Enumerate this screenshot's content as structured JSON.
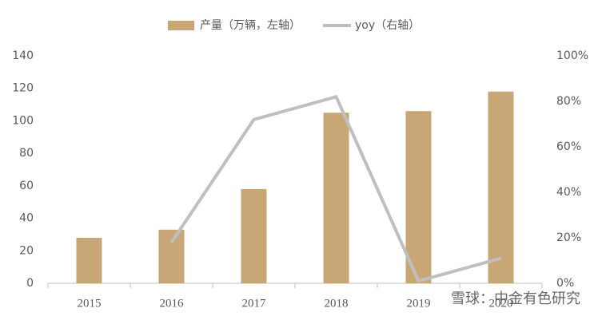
{
  "chart_data": {
    "type": "bar",
    "categories": [
      "2015",
      "2016",
      "2017",
      "2018",
      "2019",
      "2020"
    ],
    "series": [
      {
        "name": "产量（万辆，左轴）",
        "type": "bar",
        "color": "#c9a675",
        "values": [
          28,
          33,
          58,
          105,
          106,
          118
        ]
      },
      {
        "name": "yoy（右轴）",
        "type": "line",
        "axis": "y2",
        "color": "#bfbfbf",
        "values": [
          null,
          18,
          72,
          82,
          1,
          11
        ]
      }
    ],
    "ylim": [
      0,
      140
    ],
    "yticks": [
      0,
      20,
      40,
      60,
      80,
      100,
      120,
      140
    ],
    "y2lim": [
      0,
      100
    ],
    "y2ticks": [
      {
        "value": 0,
        "label": "0%"
      },
      {
        "value": 20,
        "label": "20%"
      },
      {
        "value": 40,
        "label": "40%"
      },
      {
        "value": 60,
        "label": "60%"
      },
      {
        "value": 80,
        "label": "80%"
      },
      {
        "value": 100,
        "label": "100%"
      }
    ],
    "grid": false,
    "legend": "top",
    "watermark": "雪球：中金有色研究"
  }
}
